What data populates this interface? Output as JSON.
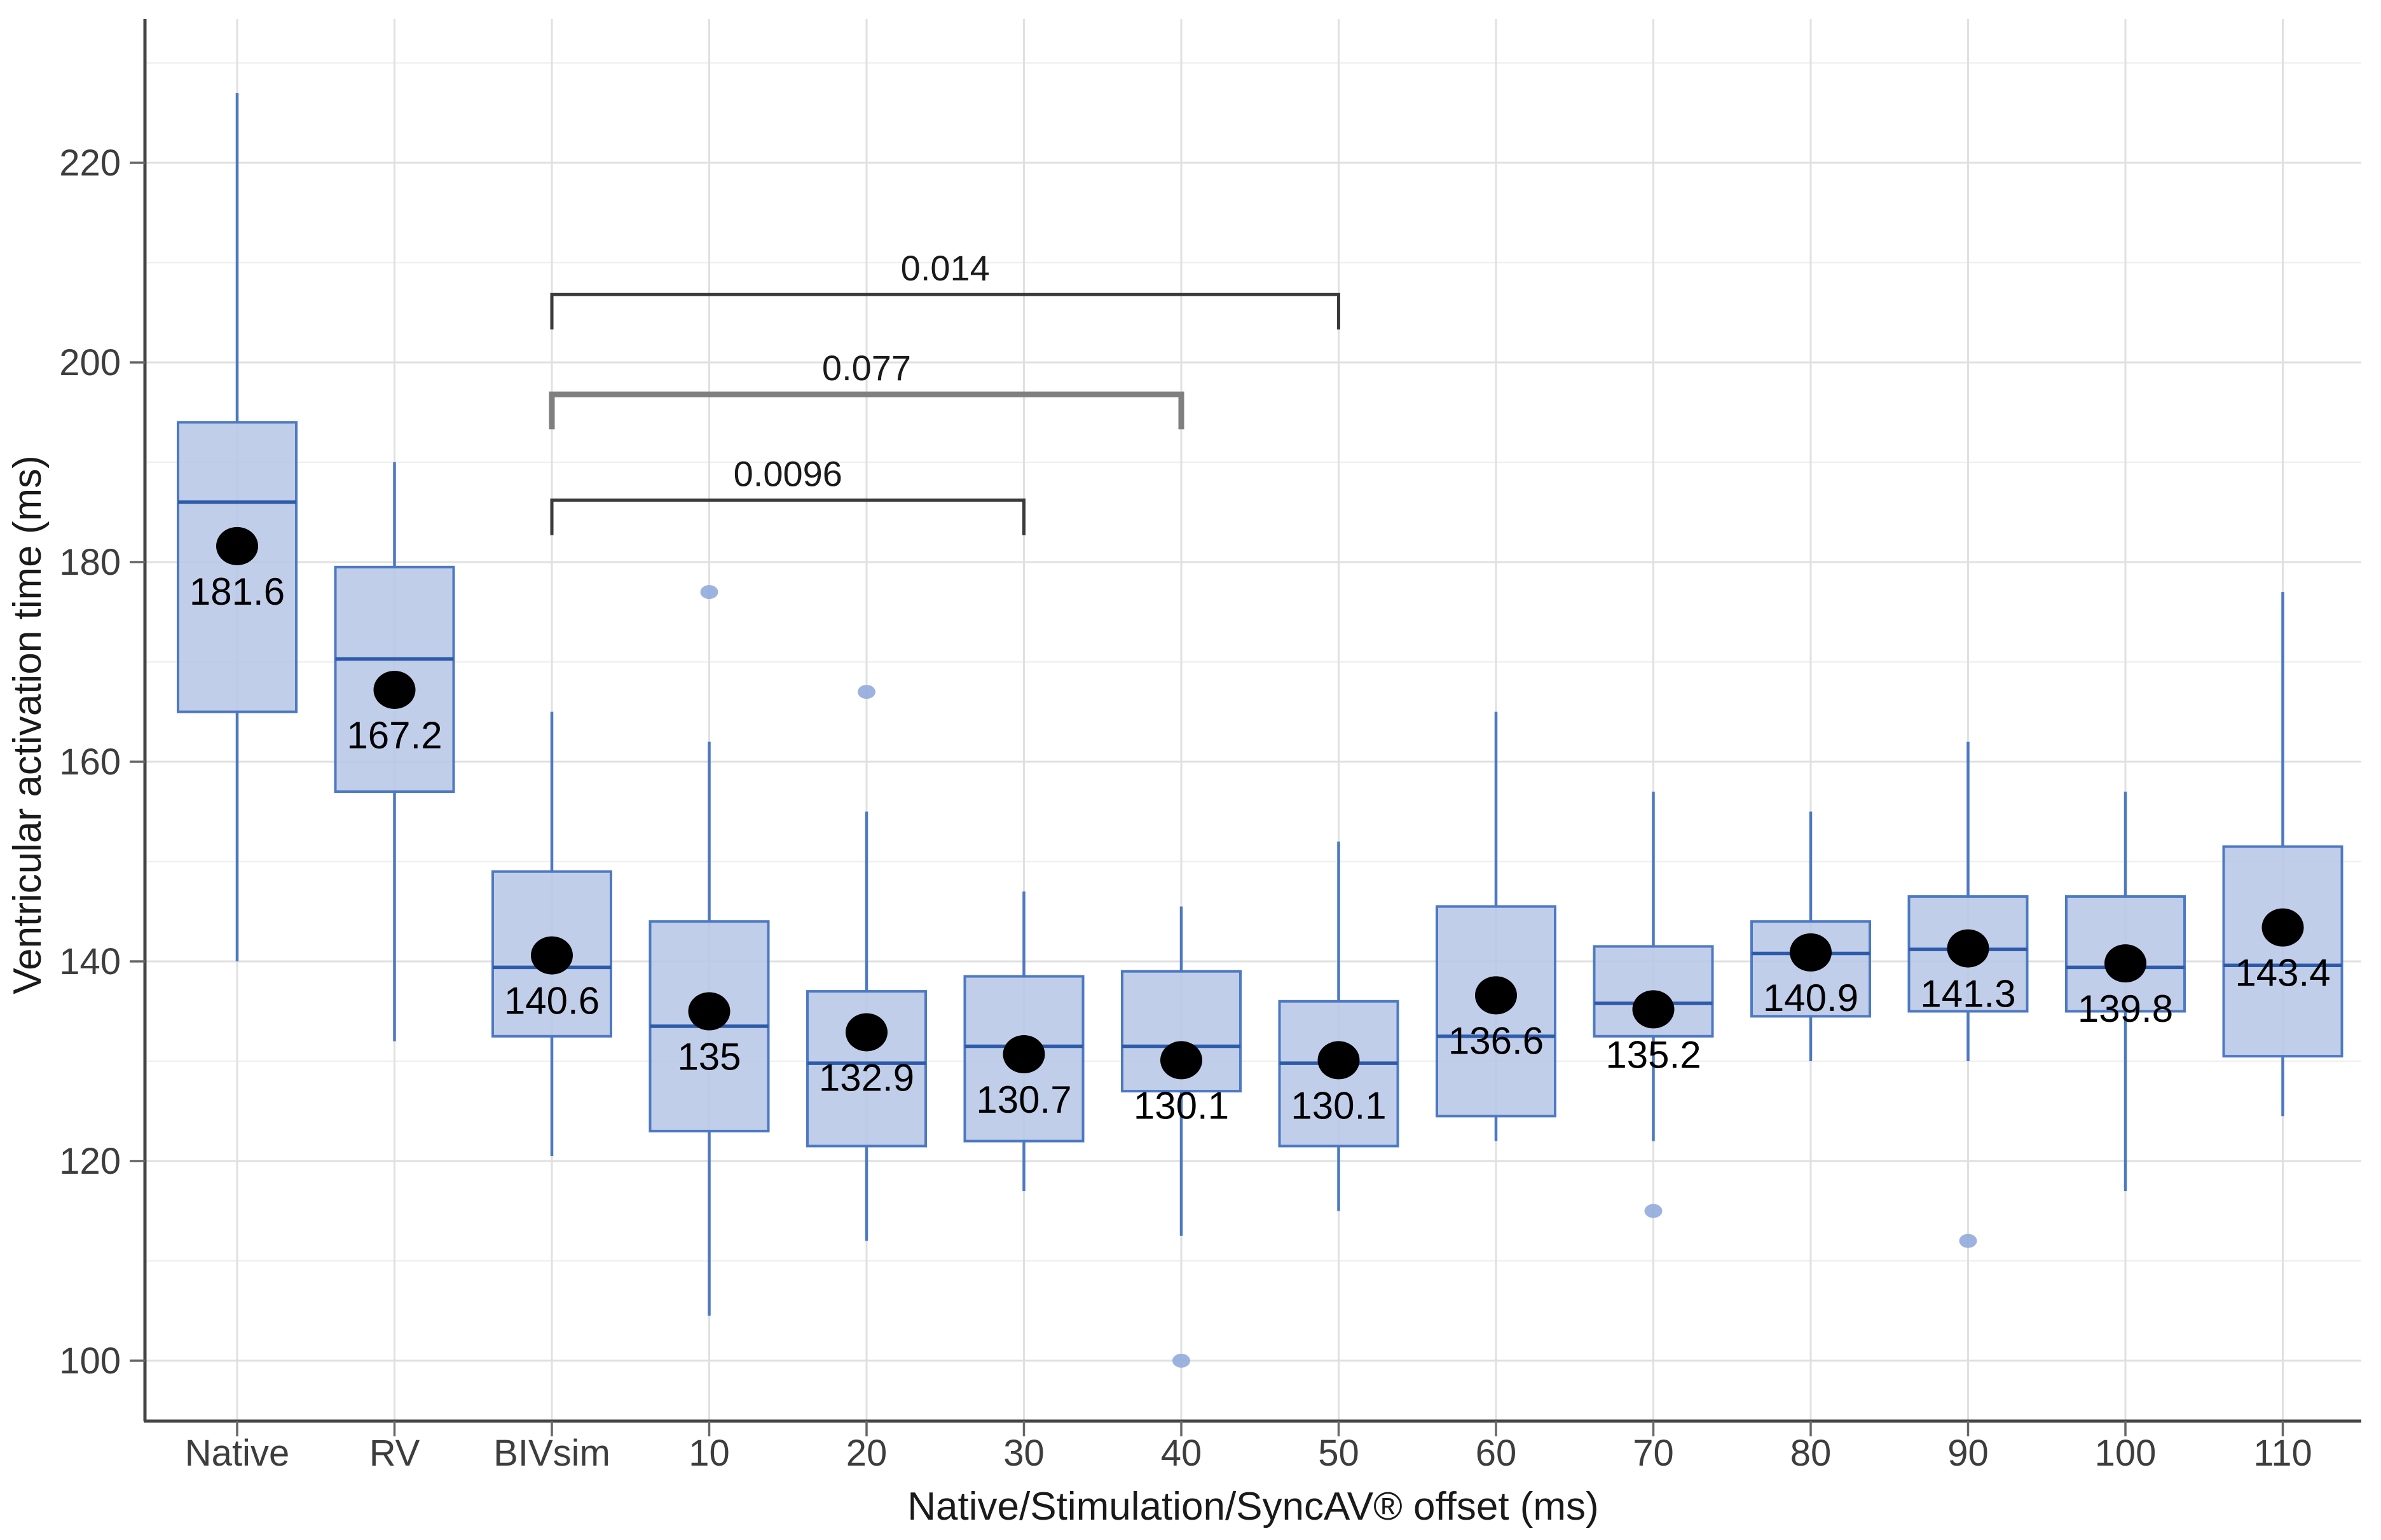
{
  "chart_data": {
    "type": "box",
    "title": "",
    "xlabel": "Native/Stimulation/SyncAV® offset (ms)",
    "ylabel": "Ventricular activation time (ms)",
    "ylim": [
      94,
      234
    ],
    "yticks": [
      100,
      120,
      140,
      160,
      180,
      200,
      220
    ],
    "yticks_minor": [
      110,
      130,
      150,
      170,
      190,
      210,
      230
    ],
    "grid": true,
    "legend": "none",
    "categories": [
      "Native",
      "RV",
      "BIVsim",
      "10",
      "20",
      "30",
      "40",
      "50",
      "60",
      "70",
      "80",
      "90",
      "100",
      "110"
    ],
    "series": [
      {
        "category": "Native",
        "min": 140,
        "q1": 165,
        "median": 186,
        "q3": 194,
        "max": 227,
        "mean": 181.6,
        "mean_label": "181.6",
        "outliers": []
      },
      {
        "category": "RV",
        "min": 132,
        "q1": 157,
        "median": 170.3,
        "q3": 179.5,
        "max": 190,
        "mean": 167.2,
        "mean_label": "167.2",
        "outliers": []
      },
      {
        "category": "BIVsim",
        "min": 120.5,
        "q1": 132.5,
        "median": 139.4,
        "q3": 149,
        "max": 165,
        "mean": 140.6,
        "mean_label": "140.6",
        "outliers": []
      },
      {
        "category": "10",
        "min": 104.5,
        "q1": 123,
        "median": 133.5,
        "q3": 144,
        "max": 162,
        "mean": 135,
        "mean_label": "135",
        "outliers": [
          177
        ]
      },
      {
        "category": "20",
        "min": 112,
        "q1": 121.5,
        "median": 129.8,
        "q3": 137,
        "max": 155,
        "mean": 132.9,
        "mean_label": "132.9",
        "outliers": [
          167
        ]
      },
      {
        "category": "30",
        "min": 117,
        "q1": 122,
        "median": 131.5,
        "q3": 138.5,
        "max": 147,
        "mean": 130.7,
        "mean_label": "130.7",
        "outliers": []
      },
      {
        "category": "40",
        "min": 112.5,
        "q1": 127,
        "median": 131.5,
        "q3": 139,
        "max": 145.5,
        "mean": 130.1,
        "mean_label": "130.1",
        "outliers": [
          100
        ]
      },
      {
        "category": "50",
        "min": 115,
        "q1": 121.5,
        "median": 129.8,
        "q3": 136,
        "max": 152,
        "mean": 130.1,
        "mean_label": "130.1",
        "outliers": []
      },
      {
        "category": "60",
        "min": 122,
        "q1": 124.5,
        "median": 132.5,
        "q3": 145.5,
        "max": 165,
        "mean": 136.6,
        "mean_label": "136.6",
        "outliers": []
      },
      {
        "category": "70",
        "min": 122,
        "q1": 132.5,
        "median": 135.8,
        "q3": 141.5,
        "max": 157,
        "mean": 135.2,
        "mean_label": "135.2",
        "outliers": [
          115
        ]
      },
      {
        "category": "80",
        "min": 130,
        "q1": 134.5,
        "median": 140.8,
        "q3": 144,
        "max": 155,
        "mean": 140.9,
        "mean_label": "140.9",
        "outliers": []
      },
      {
        "category": "90",
        "min": 130,
        "q1": 135,
        "median": 141.2,
        "q3": 146.5,
        "max": 162,
        "mean": 141.3,
        "mean_label": "141.3",
        "outliers": [
          112
        ]
      },
      {
        "category": "100",
        "min": 117,
        "q1": 135,
        "median": 139.4,
        "q3": 146.5,
        "max": 157,
        "mean": 139.8,
        "mean_label": "139.8",
        "outliers": []
      },
      {
        "category": "110",
        "min": 124.5,
        "q1": 130.5,
        "median": 139.6,
        "q3": 151.5,
        "max": 177,
        "mean": 143.4,
        "mean_label": "143.4",
        "outliers": []
      }
    ],
    "brackets": [
      {
        "from": "BIVsim",
        "to": "30",
        "label": "0.0096",
        "at": 186.2,
        "color": "#3a3a3a",
        "thickness": 5
      },
      {
        "from": "BIVsim",
        "to": "40",
        "label": "0.077",
        "at": 196.8,
        "color": "#7f7f7f",
        "thickness": 9
      },
      {
        "from": "BIVsim",
        "to": "50",
        "label": "0.014",
        "at": 206.8,
        "color": "#3a3a3a",
        "thickness": 5
      }
    ],
    "colors": {
      "box_fill": "#b6c6e6",
      "box_stroke": "#4d79c1",
      "median": "#2d5ba9",
      "whisker": "#4d79c1",
      "mean_dot": "#000000",
      "outlier": "#92abdb",
      "grid_major": "#e0e0e0",
      "grid_minor": "#f0f0f0",
      "axis_line": "#454545",
      "text": "#3d3d3d",
      "label_text": "#000000"
    }
  }
}
